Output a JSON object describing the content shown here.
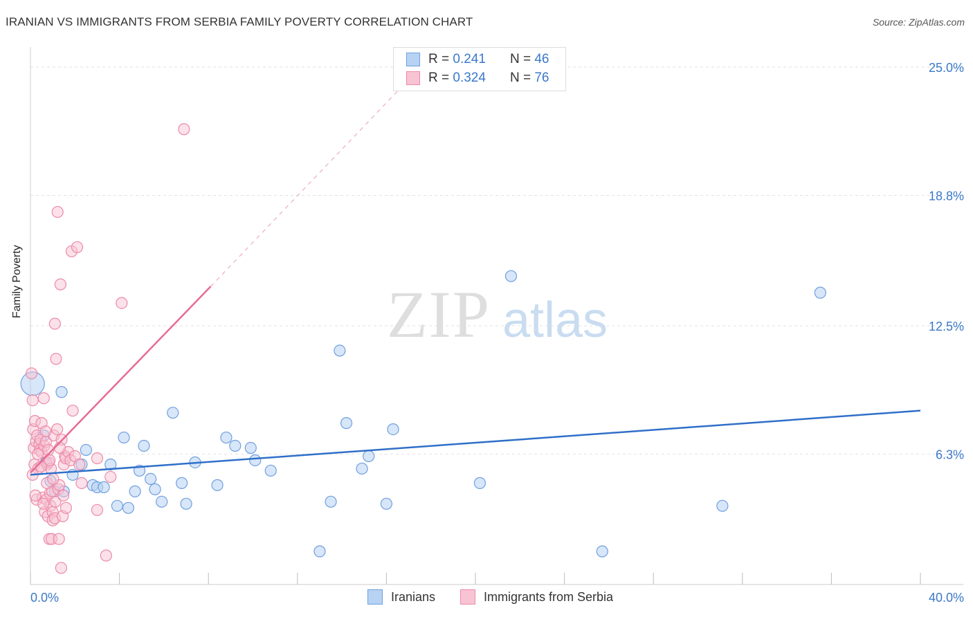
{
  "title": "IRANIAN VS IMMIGRANTS FROM SERBIA FAMILY POVERTY CORRELATION CHART",
  "source": "Source: ZipAtlas.com",
  "watermark": {
    "zip": "ZIP",
    "atlas": "atlas"
  },
  "legend_stats": [
    {
      "r_label": "R =",
      "r_value": "0.241",
      "n_label": "N =",
      "n_value": "46"
    },
    {
      "r_label": "R =",
      "r_value": "0.324",
      "n_label": "N =",
      "n_value": "76"
    }
  ],
  "colors": {
    "blue_fill": "#b7d2f2",
    "blue_stroke": "#6f9fe0",
    "blue_line": "#2f6fc9",
    "pink_fill": "#f8c3d3",
    "pink_stroke": "#ec8aa8",
    "pink_line": "#e86a93",
    "grid": "#e2e2e2",
    "tick_label": "#3a78c9"
  },
  "chart_data": {
    "type": "scatter",
    "title": "IRANIAN VS IMMIGRANTS FROM SERBIA FAMILY POVERTY CORRELATION CHART",
    "xlabel": "",
    "ylabel": "Family Poverty",
    "xlim": [
      0,
      40
    ],
    "ylim": [
      0,
      25
    ],
    "x_tick_labels": [
      {
        "value": 0,
        "label": "0.0%"
      },
      {
        "value": 40,
        "label": "40.0%"
      }
    ],
    "y_tick_labels": [
      {
        "value": 6.3,
        "label": "6.3%"
      },
      {
        "value": 12.5,
        "label": "12.5%"
      },
      {
        "value": 18.8,
        "label": "18.8%"
      },
      {
        "value": 25.0,
        "label": "25.0%"
      }
    ],
    "series": [
      {
        "name": "Iranians",
        "trend": {
          "x0": 0,
          "y0": 5.3,
          "x1": 40,
          "y1": 8.4,
          "dashed_to": null
        },
        "points": [
          [
            0.1,
            9.7
          ],
          [
            1.4,
            9.3
          ],
          [
            0.6,
            7.2
          ],
          [
            0.7,
            5.9
          ],
          [
            0.9,
            5.0
          ],
          [
            1.1,
            4.5
          ],
          [
            1.5,
            4.5
          ],
          [
            1.9,
            5.3
          ],
          [
            2.3,
            5.8
          ],
          [
            2.5,
            6.5
          ],
          [
            2.8,
            4.8
          ],
          [
            3.0,
            4.7
          ],
          [
            3.3,
            4.7
          ],
          [
            3.6,
            5.8
          ],
          [
            3.9,
            3.8
          ],
          [
            4.2,
            7.1
          ],
          [
            4.4,
            3.7
          ],
          [
            4.7,
            4.5
          ],
          [
            4.9,
            5.5
          ],
          [
            5.1,
            6.7
          ],
          [
            5.4,
            5.1
          ],
          [
            5.6,
            4.6
          ],
          [
            5.9,
            4.0
          ],
          [
            6.4,
            8.3
          ],
          [
            6.8,
            4.9
          ],
          [
            7.0,
            3.9
          ],
          [
            7.4,
            5.9
          ],
          [
            8.4,
            4.8
          ],
          [
            8.8,
            7.1
          ],
          [
            9.2,
            6.7
          ],
          [
            9.9,
            6.6
          ],
          [
            10.1,
            6.0
          ],
          [
            10.8,
            5.5
          ],
          [
            13.0,
            1.6
          ],
          [
            13.5,
            4.0
          ],
          [
            13.9,
            11.3
          ],
          [
            14.2,
            7.8
          ],
          [
            14.9,
            5.6
          ],
          [
            15.2,
            6.2
          ],
          [
            16.0,
            3.9
          ],
          [
            16.3,
            7.5
          ],
          [
            20.2,
            4.9
          ],
          [
            21.6,
            14.9
          ],
          [
            25.7,
            1.6
          ],
          [
            31.1,
            3.8
          ],
          [
            35.5,
            14.1
          ]
        ]
      },
      {
        "name": "Immigrants from Serbia",
        "trend": {
          "x0": 0,
          "y0": 5.4,
          "x1": 8.1,
          "y1": 14.4,
          "dashed_to": {
            "x": 17.0,
            "y": 24.4
          }
        },
        "points": [
          [
            0.05,
            10.2
          ],
          [
            0.1,
            8.9
          ],
          [
            0.12,
            7.5
          ],
          [
            0.15,
            6.6
          ],
          [
            0.18,
            5.8
          ],
          [
            0.2,
            7.9
          ],
          [
            0.25,
            6.9
          ],
          [
            0.28,
            4.1
          ],
          [
            0.3,
            7.2
          ],
          [
            0.35,
            5.6
          ],
          [
            0.4,
            6.8
          ],
          [
            0.42,
            6.5
          ],
          [
            0.45,
            7.0
          ],
          [
            0.5,
            6.4
          ],
          [
            0.5,
            7.8
          ],
          [
            0.55,
            4.2
          ],
          [
            0.6,
            9.0
          ],
          [
            0.62,
            6.7
          ],
          [
            0.65,
            3.5
          ],
          [
            0.7,
            6.9
          ],
          [
            0.72,
            4.1
          ],
          [
            0.75,
            5.8
          ],
          [
            0.78,
            3.3
          ],
          [
            0.8,
            6.5
          ],
          [
            0.82,
            5.9
          ],
          [
            0.85,
            2.2
          ],
          [
            0.88,
            4.4
          ],
          [
            0.9,
            3.8
          ],
          [
            0.92,
            5.6
          ],
          [
            0.95,
            2.2
          ],
          [
            0.98,
            4.5
          ],
          [
            1.0,
            3.5
          ],
          [
            1.0,
            3.1
          ],
          [
            1.05,
            7.2
          ],
          [
            1.1,
            3.2
          ],
          [
            1.1,
            12.6
          ],
          [
            1.15,
            10.9
          ],
          [
            1.2,
            7.5
          ],
          [
            1.22,
            18.0
          ],
          [
            1.25,
            4.6
          ],
          [
            1.28,
            2.2
          ],
          [
            1.3,
            4.8
          ],
          [
            1.35,
            14.5
          ],
          [
            1.38,
            0.8
          ],
          [
            1.4,
            7.0
          ],
          [
            1.45,
            3.3
          ],
          [
            1.5,
            5.8
          ],
          [
            1.55,
            6.2
          ],
          [
            1.58,
            6.1
          ],
          [
            1.6,
            3.7
          ],
          [
            1.7,
            6.4
          ],
          [
            1.8,
            6.0
          ],
          [
            1.85,
            16.1
          ],
          [
            1.9,
            8.4
          ],
          [
            2.0,
            6.2
          ],
          [
            2.1,
            16.3
          ],
          [
            2.2,
            5.8
          ],
          [
            2.3,
            4.9
          ],
          [
            3.0,
            3.6
          ],
          [
            3.0,
            6.1
          ],
          [
            3.4,
            1.4
          ],
          [
            3.6,
            5.2
          ],
          [
            4.1,
            13.6
          ],
          [
            6.9,
            22.0
          ],
          [
            0.1,
            5.3
          ],
          [
            0.22,
            4.3
          ],
          [
            0.33,
            6.3
          ],
          [
            0.48,
            5.7
          ],
          [
            0.58,
            3.9
          ],
          [
            0.68,
            7.4
          ],
          [
            0.74,
            4.9
          ],
          [
            0.86,
            6.0
          ],
          [
            1.02,
            5.1
          ],
          [
            1.12,
            4.0
          ],
          [
            1.32,
            6.6
          ],
          [
            1.48,
            4.3
          ]
        ]
      }
    ]
  }
}
